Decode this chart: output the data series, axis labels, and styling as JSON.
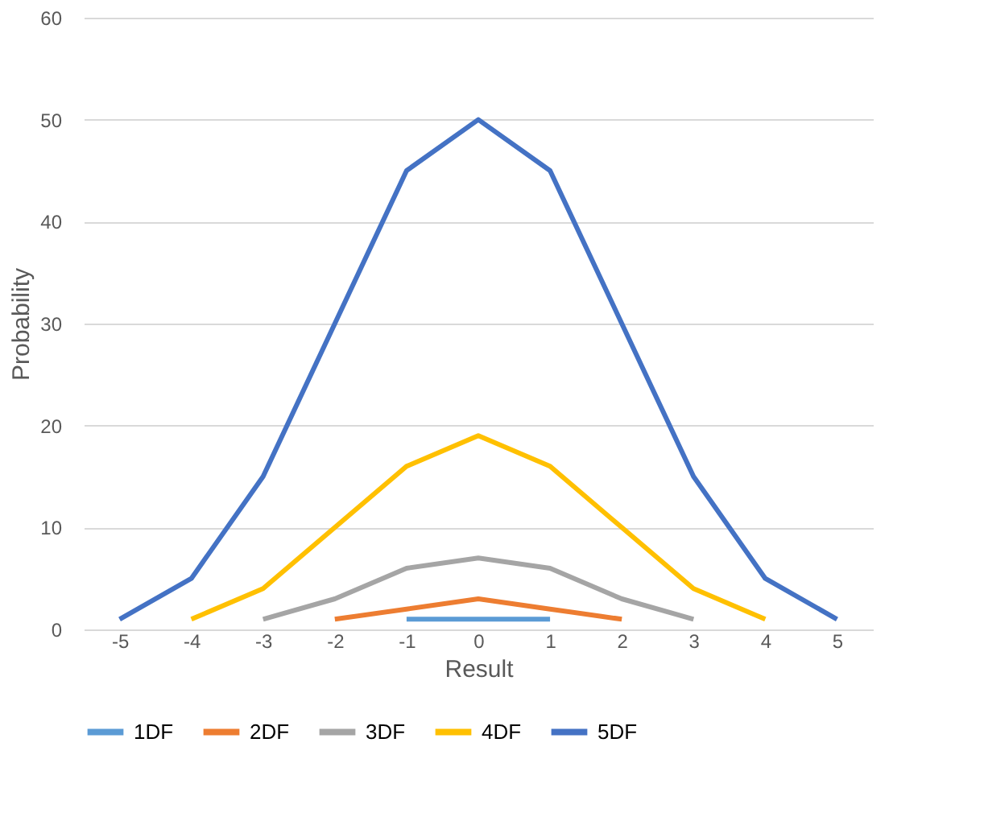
{
  "chart_data": {
    "type": "line",
    "xlabel": "Result",
    "ylabel": "Probability",
    "categories": [
      "-5",
      "-4",
      "-3",
      "-2",
      "-1",
      "0",
      "1",
      "2",
      "3",
      "4",
      "5"
    ],
    "series": [
      {
        "name": "1DF",
        "color": "#5b9bd5",
        "values": [
          null,
          null,
          null,
          null,
          1,
          1,
          1,
          null,
          null,
          null,
          null
        ]
      },
      {
        "name": "2DF",
        "color": "#ed7d31",
        "values": [
          null,
          null,
          null,
          1,
          2,
          3,
          2,
          1,
          null,
          null,
          null
        ]
      },
      {
        "name": "3DF",
        "color": "#a5a5a5",
        "values": [
          null,
          null,
          1,
          3,
          6,
          7,
          6,
          3,
          1,
          null,
          null
        ]
      },
      {
        "name": "4DF",
        "color": "#ffc000",
        "values": [
          null,
          1,
          4,
          10,
          16,
          19,
          16,
          10,
          4,
          1,
          null
        ]
      },
      {
        "name": "5DF",
        "color": "#4472c4",
        "values": [
          1,
          5,
          15,
          30,
          45,
          50,
          45,
          30,
          15,
          5,
          1
        ]
      }
    ],
    "ylim": [
      0,
      60
    ],
    "yticks": [
      0,
      10,
      20,
      30,
      40,
      50,
      60
    ],
    "grid": "y",
    "legend": "bottom",
    "marker": "none",
    "line_style": "solid"
  }
}
